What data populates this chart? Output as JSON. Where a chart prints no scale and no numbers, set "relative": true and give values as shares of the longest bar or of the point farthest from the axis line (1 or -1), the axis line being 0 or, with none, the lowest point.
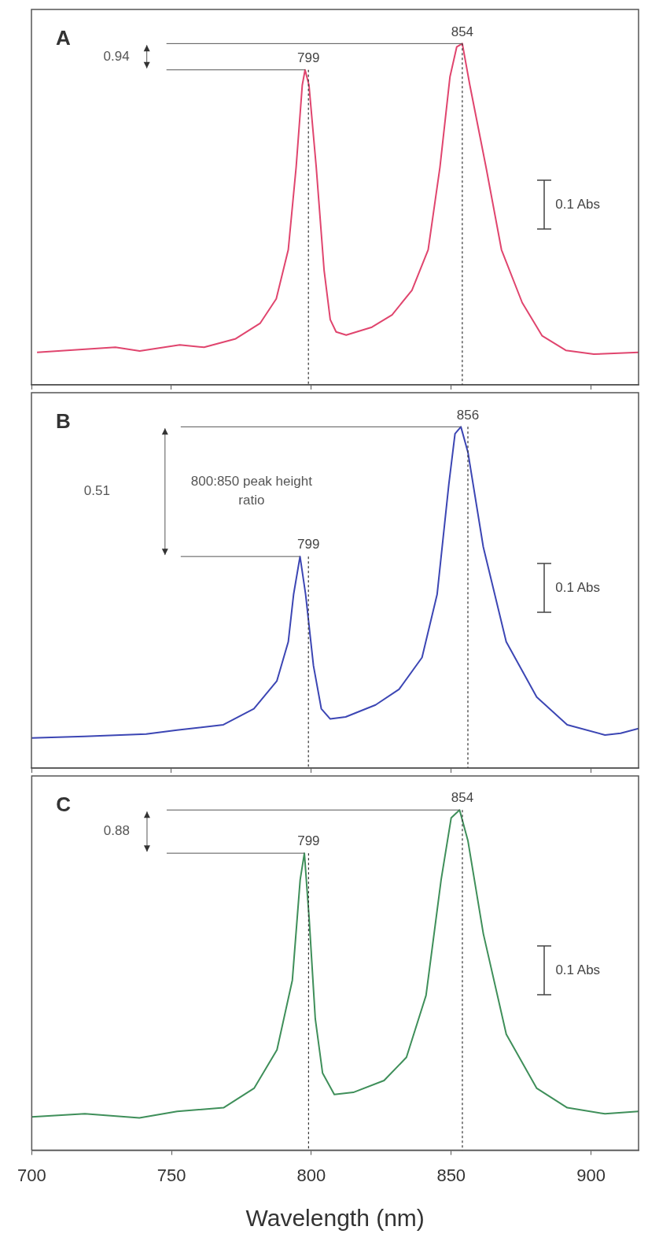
{
  "chart_data": [
    {
      "type": "line",
      "relative": true,
      "xlim": [
        700,
        917
      ],
      "xticks": [
        700,
        750,
        800,
        850,
        900
      ],
      "tick_labels": false,
      "legend": false,
      "grid": false,
      "marker": "none",
      "line_style": "solid",
      "series": [
        {
          "color": "#e0456e",
          "x": [
            702,
            730,
            738.7,
            753,
            761.7,
            773,
            781.7,
            787.5,
            791.8,
            794.6,
            796.8,
            797.8,
            799.2,
            801.8,
            804.6,
            806.8,
            808.9,
            812.5,
            821.7,
            828.9,
            836,
            841.8,
            846,
            849.6,
            852,
            854,
            856.7,
            862.5,
            868,
            875.4,
            882.5,
            891,
            901,
            917
          ],
          "values": [
            0.095,
            0.11,
            0.099,
            0.117,
            0.11,
            0.135,
            0.18,
            0.252,
            0.396,
            0.637,
            0.878,
            0.923,
            0.878,
            0.637,
            0.336,
            0.191,
            0.155,
            0.146,
            0.169,
            0.205,
            0.277,
            0.396,
            0.637,
            0.903,
            0.99,
            1.0,
            0.878,
            0.637,
            0.396,
            0.241,
            0.144,
            0.101,
            0.09,
            0.095
          ]
        }
      ],
      "ref_lines": [
        {
          "axis": "x",
          "value": 799,
          "label": "799",
          "line_style": "dotted",
          "color": "#333333"
        },
        {
          "axis": "x",
          "value": 854,
          "label": "854",
          "line_style": "dotted",
          "color": "#333333"
        }
      ],
      "annotations": [
        "A",
        "0.94",
        "0.1 Abs"
      ]
    },
    {
      "type": "line",
      "relative": true,
      "xlim": [
        700,
        917
      ],
      "xticks": [
        700,
        750,
        800,
        850,
        900
      ],
      "tick_labels": false,
      "legend": false,
      "grid": false,
      "marker": "none",
      "line_style": "solid",
      "series": [
        {
          "color": "#3c46b4",
          "x": [
            700,
            719,
            741,
            752,
            768.6,
            779.5,
            787.7,
            791.8,
            793.7,
            796,
            798,
            800.8,
            803.6,
            806.8,
            812.3,
            823,
            831.4,
            839.6,
            845,
            849.2,
            851.4,
            853.5,
            856,
            861.5,
            869.7,
            880.6,
            891.5,
            905,
            910.6,
            917
          ],
          "values": [
            0.088,
            0.093,
            0.1,
            0.111,
            0.127,
            0.174,
            0.255,
            0.37,
            0.509,
            0.62,
            0.509,
            0.3,
            0.174,
            0.144,
            0.15,
            0.185,
            0.231,
            0.324,
            0.509,
            0.833,
            0.98,
            1.0,
            0.926,
            0.648,
            0.37,
            0.208,
            0.127,
            0.097,
            0.102,
            0.116
          ]
        }
      ],
      "ref_lines": [
        {
          "axis": "x",
          "value": 799,
          "label": "799",
          "line_style": "dotted",
          "color": "#333333"
        },
        {
          "axis": "x",
          "value": 856,
          "label": "856",
          "line_style": "dotted",
          "color": "#333333"
        }
      ],
      "annotations": [
        "B",
        "0.51",
        "800:850 peak height ratio",
        "0.1 Abs"
      ]
    },
    {
      "type": "line",
      "relative": true,
      "xlim": [
        700,
        917
      ],
      "xticks": [
        700,
        750,
        800,
        850,
        900
      ],
      "tick_labels": "x",
      "xlabel": "Wavelength (nm)",
      "legend": false,
      "grid": false,
      "marker": "none",
      "line_style": "solid",
      "series": [
        {
          "color": "#3f8f5a",
          "x": [
            700,
            719,
            738.5,
            752,
            768.6,
            779.5,
            787.7,
            793.2,
            796,
            797.5,
            799.2,
            801.4,
            804,
            808.2,
            815,
            826,
            834,
            841,
            846.4,
            850,
            853,
            856,
            861.5,
            869.7,
            880.6,
            891.5,
            905,
            917
          ],
          "values": [
            0.098,
            0.107,
            0.095,
            0.114,
            0.125,
            0.182,
            0.295,
            0.5,
            0.795,
            0.873,
            0.682,
            0.386,
            0.227,
            0.164,
            0.17,
            0.205,
            0.273,
            0.455,
            0.795,
            0.977,
            1.0,
            0.909,
            0.636,
            0.341,
            0.182,
            0.125,
            0.107,
            0.114
          ]
        }
      ],
      "ref_lines": [
        {
          "axis": "x",
          "value": 799,
          "label": "799",
          "line_style": "dotted",
          "color": "#333333"
        },
        {
          "axis": "x",
          "value": 854,
          "label": "854",
          "line_style": "dotted",
          "color": "#333333"
        }
      ],
      "annotations": [
        "C",
        "0.88",
        "0.1 Abs"
      ]
    }
  ]
}
